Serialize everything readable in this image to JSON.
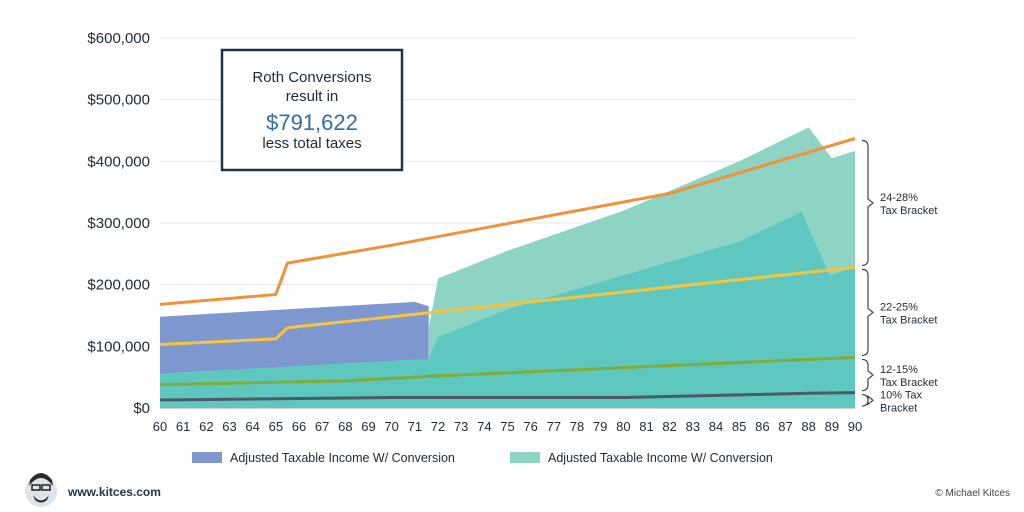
{
  "chart_data": {
    "type": "area",
    "x": [
      60,
      61,
      62,
      63,
      64,
      65,
      66,
      67,
      68,
      69,
      70,
      71,
      72,
      73,
      74,
      75,
      76,
      77,
      78,
      79,
      80,
      81,
      82,
      83,
      84,
      85,
      86,
      87,
      88,
      89,
      90
    ],
    "y_ticks": [
      "$0",
      "$100,000",
      "$200,000",
      "$300,000",
      "$400,000",
      "$500,000",
      "$600,000"
    ],
    "y_tick_values": [
      0,
      100000,
      200000,
      300000,
      400000,
      500000,
      600000
    ],
    "ylim": [
      0,
      600000
    ],
    "xlim": [
      60,
      90
    ],
    "grid": true,
    "legend_position": "bottom",
    "area_series": [
      {
        "name": "Adjusted Taxable Income W/ Conversion",
        "color": "#7f97cf",
        "points": [
          [
            60,
            148000
          ],
          [
            71,
            172000
          ],
          [
            71.6,
            165000
          ],
          [
            71.6,
            56000
          ],
          [
            60,
            56000
          ]
        ]
      },
      {
        "name": "Adjusted Taxable Income W/ Conversion",
        "color": "#8dd4c4",
        "points": [
          [
            71.6,
            0
          ],
          [
            71.6,
            130000
          ],
          [
            72,
            210000
          ],
          [
            75,
            255000
          ],
          [
            80,
            320000
          ],
          [
            85,
            400000
          ],
          [
            88,
            455000
          ],
          [
            89,
            405000
          ],
          [
            90,
            417000
          ],
          [
            90,
            0
          ]
        ]
      },
      {
        "name": "",
        "color": "#5ec8c0",
        "points": [
          [
            60,
            0
          ],
          [
            60,
            56000
          ],
          [
            71.6,
            80000
          ],
          [
            72,
            115000
          ],
          [
            75,
            160000
          ],
          [
            80,
            215000
          ],
          [
            85,
            270000
          ],
          [
            87.7,
            318000
          ],
          [
            88.9,
            215000
          ],
          [
            90,
            228000
          ],
          [
            90,
            0
          ]
        ]
      }
    ],
    "bracket_lines": [
      {
        "color": "#f0923c",
        "points": [
          [
            60,
            168000
          ],
          [
            65,
            184000
          ],
          [
            65.5,
            235000
          ],
          [
            70,
            264000
          ],
          [
            82,
            348000
          ],
          [
            90,
            437000
          ]
        ]
      },
      {
        "color": "#f5c33c",
        "points": [
          [
            60,
            103000
          ],
          [
            65,
            112000
          ],
          [
            65.5,
            130000
          ],
          [
            90,
            228000
          ]
        ]
      },
      {
        "color": "#7fae3a",
        "points": [
          [
            60,
            38000
          ],
          [
            68,
            44000
          ],
          [
            72,
            52000
          ],
          [
            90,
            82000
          ]
        ]
      },
      {
        "color": "#4d5c63",
        "points": [
          [
            60,
            13000
          ],
          [
            70,
            17000
          ],
          [
            80,
            17000
          ],
          [
            86,
            22000
          ],
          [
            88,
            24000
          ],
          [
            90,
            25000
          ]
        ]
      }
    ],
    "brackets": [
      {
        "lines": [
          "24-28%",
          "Tax Bracket"
        ],
        "from": 228000,
        "to": 437000
      },
      {
        "lines": [
          "22-25%",
          "Tax Bracket"
        ],
        "from": 82000,
        "to": 228000
      },
      {
        "lines": [
          "12-15%",
          "Tax Bracket"
        ],
        "from": 25000,
        "to": 82000
      },
      {
        "lines": [
          "10% Tax",
          "Bracket"
        ],
        "from": 0,
        "to": 25000
      }
    ],
    "callout": {
      "line1": "Roth Conversions",
      "line2": "result in",
      "amount": "$791,622",
      "line3": "less total taxes"
    },
    "legend": [
      {
        "label": "Adjusted Taxable Income W/ Conversion",
        "color": "#7f97cf"
      },
      {
        "label": "Adjusted Taxable Income W/ Conversion",
        "color": "#8dd4c4"
      }
    ]
  },
  "footer": {
    "site": "www.kitces.com",
    "copyright": "© Michael Kitces"
  }
}
